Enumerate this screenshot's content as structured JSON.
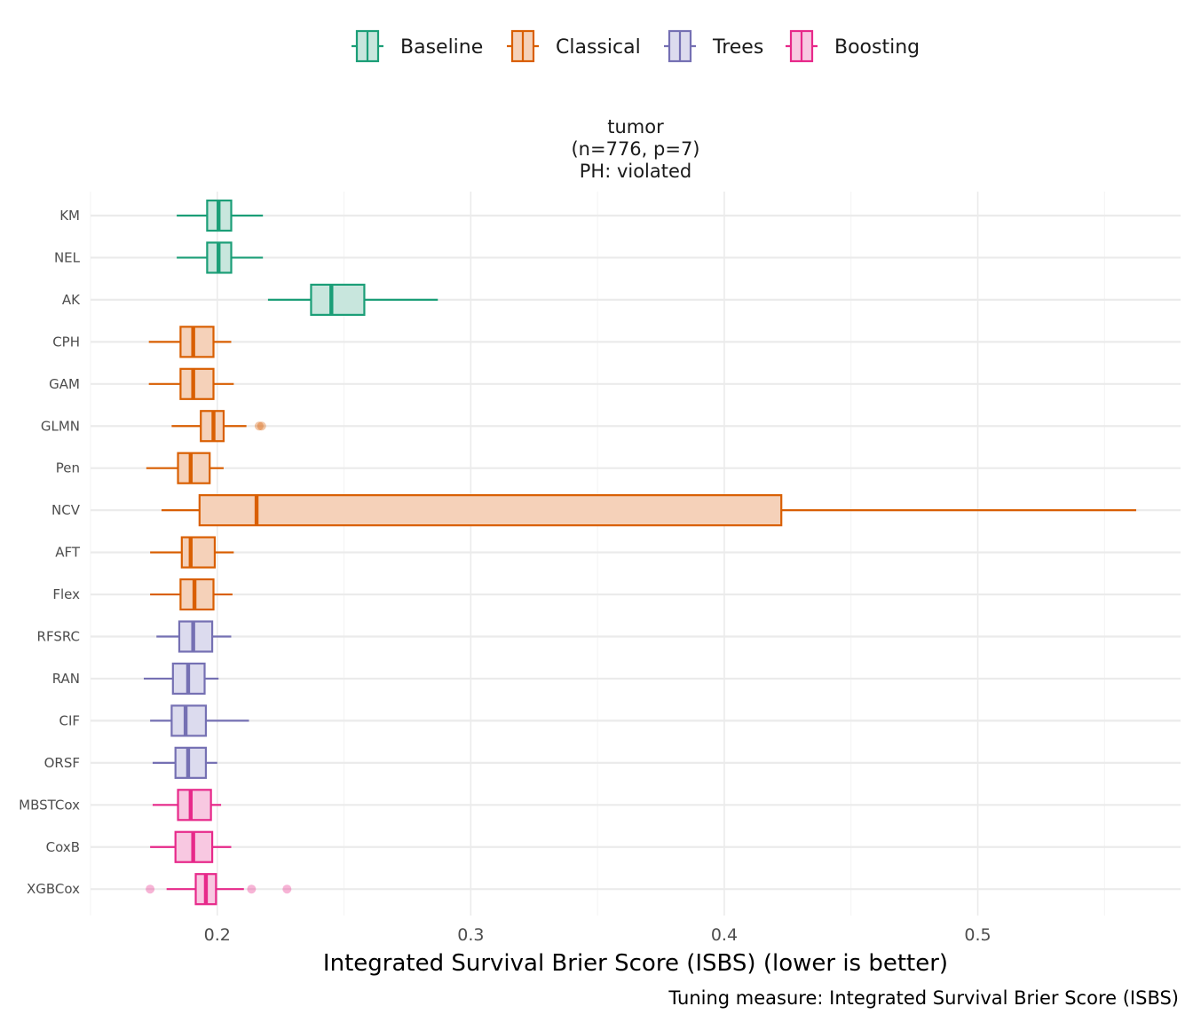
{
  "chart_data": {
    "type": "boxplot",
    "facet": {
      "title_lines": [
        "tumor",
        "(n=776, p=7)",
        "PH: violated"
      ]
    },
    "xlabel": "Integrated Survival Brier Score (ISBS) (lower is better)",
    "caption": "Tuning measure: Integrated Survival Brier Score (ISBS)",
    "xlim": [
      0.15,
      0.58
    ],
    "xticks": [
      0.2,
      0.3,
      0.4,
      0.5
    ],
    "xtick_labels": [
      "0.2",
      "0.3",
      "0.4",
      "0.5"
    ],
    "grid": true,
    "legend_position": "top",
    "groups": [
      {
        "name": "Baseline",
        "color": "#1b9e77",
        "fill": "#c8e6dd"
      },
      {
        "name": "Classical",
        "color": "#d95f02",
        "fill": "#f5d1b9"
      },
      {
        "name": "Trees",
        "color": "#7570b3",
        "fill": "#dcdbee"
      },
      {
        "name": "Boosting",
        "color": "#e7298a",
        "fill": "#f8c8e1"
      }
    ],
    "boxes": [
      {
        "label": "KM",
        "group": "Baseline",
        "whisker_low": 0.184,
        "q1": 0.196,
        "median": 0.2005,
        "q3": 0.2055,
        "whisker_high": 0.218,
        "outliers": []
      },
      {
        "label": "NEL",
        "group": "Baseline",
        "whisker_low": 0.184,
        "q1": 0.196,
        "median": 0.2005,
        "q3": 0.2055,
        "whisker_high": 0.218,
        "outliers": []
      },
      {
        "label": "AK",
        "group": "Baseline",
        "whisker_low": 0.22,
        "q1": 0.237,
        "median": 0.245,
        "q3": 0.258,
        "whisker_high": 0.287,
        "outliers": []
      },
      {
        "label": "CPH",
        "group": "Classical",
        "whisker_low": 0.173,
        "q1": 0.1855,
        "median": 0.1905,
        "q3": 0.1985,
        "whisker_high": 0.2055,
        "outliers": []
      },
      {
        "label": "GAM",
        "group": "Classical",
        "whisker_low": 0.173,
        "q1": 0.1855,
        "median": 0.1905,
        "q3": 0.1985,
        "whisker_high": 0.2065,
        "outliers": []
      },
      {
        "label": "GLMN",
        "group": "Classical",
        "whisker_low": 0.182,
        "q1": 0.1935,
        "median": 0.1985,
        "q3": 0.2025,
        "whisker_high": 0.2115,
        "outliers": [
          0.2165,
          0.2175
        ]
      },
      {
        "label": "Pen",
        "group": "Classical",
        "whisker_low": 0.172,
        "q1": 0.1845,
        "median": 0.1895,
        "q3": 0.197,
        "whisker_high": 0.2025,
        "outliers": []
      },
      {
        "label": "NCV",
        "group": "Classical",
        "whisker_low": 0.178,
        "q1": 0.193,
        "median": 0.2155,
        "q3": 0.4225,
        "whisker_high": 0.5625,
        "outliers": []
      },
      {
        "label": "AFT",
        "group": "Classical",
        "whisker_low": 0.1735,
        "q1": 0.186,
        "median": 0.1895,
        "q3": 0.199,
        "whisker_high": 0.2065,
        "outliers": []
      },
      {
        "label": "Flex",
        "group": "Classical",
        "whisker_low": 0.1735,
        "q1": 0.1855,
        "median": 0.191,
        "q3": 0.1985,
        "whisker_high": 0.206,
        "outliers": []
      },
      {
        "label": "RFSRC",
        "group": "Trees",
        "whisker_low": 0.176,
        "q1": 0.185,
        "median": 0.1905,
        "q3": 0.198,
        "whisker_high": 0.2055,
        "outliers": []
      },
      {
        "label": "RAN",
        "group": "Trees",
        "whisker_low": 0.171,
        "q1": 0.1825,
        "median": 0.1885,
        "q3": 0.195,
        "whisker_high": 0.2005,
        "outliers": []
      },
      {
        "label": "CIF",
        "group": "Trees",
        "whisker_low": 0.1735,
        "q1": 0.182,
        "median": 0.1875,
        "q3": 0.1955,
        "whisker_high": 0.2125,
        "outliers": []
      },
      {
        "label": "ORSF",
        "group": "Trees",
        "whisker_low": 0.1745,
        "q1": 0.1835,
        "median": 0.1885,
        "q3": 0.1955,
        "whisker_high": 0.2,
        "outliers": []
      },
      {
        "label": "MBSTCox",
        "group": "Boosting",
        "whisker_low": 0.1745,
        "q1": 0.1845,
        "median": 0.1895,
        "q3": 0.1975,
        "whisker_high": 0.2015,
        "outliers": []
      },
      {
        "label": "CoxB",
        "group": "Boosting",
        "whisker_low": 0.1735,
        "q1": 0.1835,
        "median": 0.1905,
        "q3": 0.198,
        "whisker_high": 0.2055,
        "outliers": []
      },
      {
        "label": "XGBCox",
        "group": "Boosting",
        "whisker_low": 0.18,
        "q1": 0.1915,
        "median": 0.1955,
        "q3": 0.1995,
        "whisker_high": 0.2105,
        "outliers": [
          0.1735,
          0.2135,
          0.2275
        ]
      }
    ]
  }
}
